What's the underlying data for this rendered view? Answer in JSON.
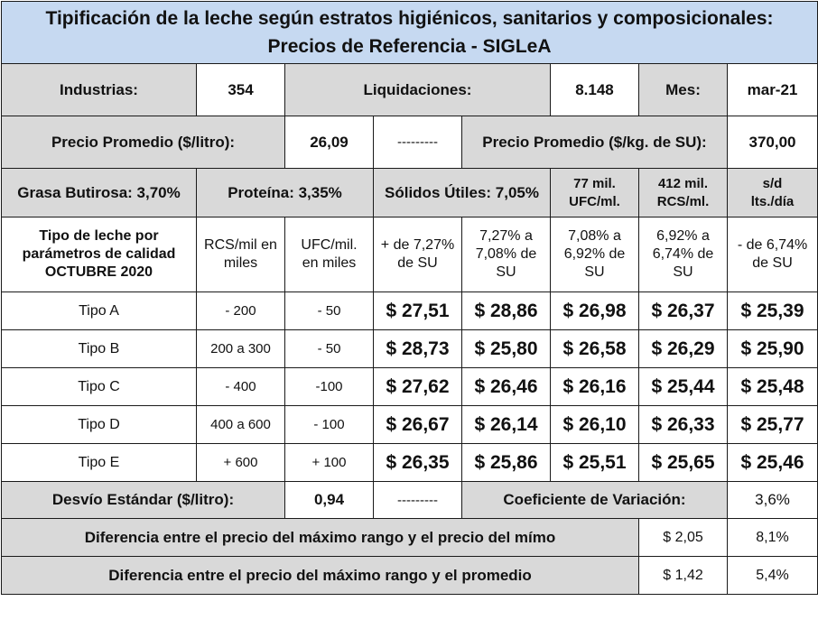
{
  "title": {
    "line1": "Tipificación de la leche según estratos higiénicos, sanitarios y composicionales:",
    "line2": "Precios de Referencia - SIGLeA"
  },
  "summary": {
    "industrias_label": "Industrias:",
    "industrias_value": "354",
    "liquidaciones_label": "Liquidaciones:",
    "liquidaciones_value": "8.148",
    "mes_label": "Mes:",
    "mes_value": "mar-21",
    "precio_litro_label": "Precio Promedio ($/litro):",
    "precio_litro_value": "26,09",
    "dashes": "---------",
    "precio_kg_label": "Precio Promedio ($/kg. de SU):",
    "precio_kg_value": "370,00"
  },
  "composition": {
    "grasa": "Grasa Butirosa: 3,70%",
    "proteina": "Proteína: 3,35%",
    "solidos": "Sólidos Útiles: 7,05%",
    "ufc": [
      "77 mil.",
      "UFC/ml."
    ],
    "rcs": [
      "412 mil.",
      "RCS/ml."
    ],
    "sd": [
      "s/d",
      "lts./día"
    ]
  },
  "table_header": {
    "tipo": [
      "Tipo de leche por",
      "parámetros de calidad",
      "OCTUBRE 2020"
    ],
    "rcs": [
      "RCS/mil en",
      "miles"
    ],
    "ufc": [
      "UFC/mil.",
      "en miles"
    ],
    "c1": [
      "+ de 7,27%",
      "de SU"
    ],
    "c2": [
      "7,27% a",
      "7,08% de",
      "SU"
    ],
    "c3": [
      "7,08% a",
      "6,92% de",
      "SU"
    ],
    "c4": [
      "6,92% a",
      "6,74% de",
      "SU"
    ],
    "c5": [
      "- de 6,74%",
      "de SU"
    ]
  },
  "rows": [
    {
      "tipo": "Tipo A",
      "rcs": "- 200",
      "ufc": "- 50",
      "prices": [
        "$ 27,51",
        "$ 28,86",
        "$ 26,98",
        "$ 26,37",
        "$ 25,39"
      ]
    },
    {
      "tipo": "Tipo B",
      "rcs": "200 a 300",
      "ufc": "- 50",
      "prices": [
        "$ 28,73",
        "$ 25,80",
        "$ 26,58",
        "$ 26,29",
        "$ 25,90"
      ]
    },
    {
      "tipo": "Tipo C",
      "rcs": "- 400",
      "ufc": "-100",
      "prices": [
        "$ 27,62",
        "$ 26,46",
        "$ 26,16",
        "$ 25,44",
        "$ 25,48"
      ]
    },
    {
      "tipo": "Tipo D",
      "rcs": "400 a 600",
      "ufc": "- 100",
      "prices": [
        "$ 26,67",
        "$ 26,14",
        "$ 26,10",
        "$ 26,33",
        "$ 25,77"
      ]
    },
    {
      "tipo": "Tipo E",
      "rcs": "+ 600",
      "ufc": "+ 100",
      "prices": [
        "$ 26,35",
        "$ 25,86",
        "$ 25,51",
        "$ 25,65",
        "$ 25,46"
      ]
    }
  ],
  "stats": {
    "desvio_label": "Desvío Estándar ($/litro):",
    "desvio_value": "0,94",
    "dashes": "---------",
    "coef_label": "Coeficiente de Variación:",
    "coef_value": "3,6%"
  },
  "diffs": [
    {
      "label": "Diferencia entre el precio del máximo rango y el precio del mímo",
      "amount": "$ 2,05",
      "pct": "8,1%"
    },
    {
      "label": "Diferencia entre el precio del máximo rango y el promedio",
      "amount": "$ 1,42",
      "pct": "5,4%"
    }
  ]
}
